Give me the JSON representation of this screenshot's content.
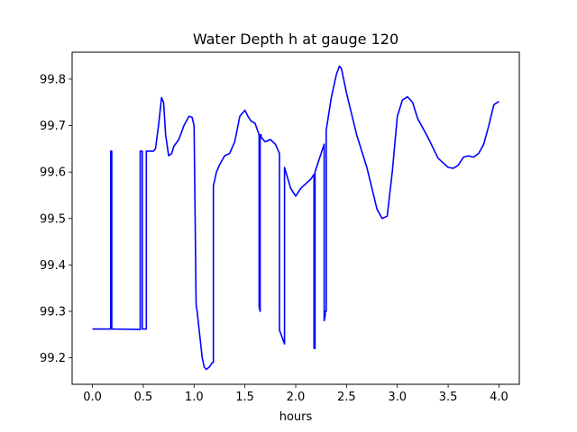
{
  "chart_data": {
    "type": "line",
    "title": "Water Depth h at gauge 120",
    "xlabel": "hours",
    "ylabel": "",
    "xlim": [
      -0.2,
      4.2
    ],
    "ylim": [
      99.143,
      99.858
    ],
    "xticks": [
      0.0,
      0.5,
      1.0,
      1.5,
      2.0,
      2.5,
      3.0,
      3.5,
      4.0
    ],
    "xtick_labels": [
      "0.0",
      "0.5",
      "1.0",
      "1.5",
      "2.0",
      "2.5",
      "3.0",
      "3.5",
      "4.0"
    ],
    "yticks": [
      99.2,
      99.3,
      99.4,
      99.5,
      99.6,
      99.7,
      99.8
    ],
    "ytick_labels": [
      "99.2",
      "99.3",
      "99.4",
      "99.5",
      "99.6",
      "99.7",
      "99.8"
    ],
    "grid": false,
    "line_color": "#0000ff",
    "series": [
      {
        "x": [
          0.0,
          0.18,
          0.18,
          0.19,
          0.19,
          0.2,
          0.2,
          0.47,
          0.47,
          0.49,
          0.49,
          0.5,
          0.5,
          0.53,
          0.53,
          0.55,
          0.6,
          0.62,
          0.65,
          0.68,
          0.7,
          0.72,
          0.75,
          0.78,
          0.8,
          0.85,
          0.9,
          0.95,
          0.98,
          1.0,
          1.02,
          1.03,
          1.05,
          1.08,
          1.1,
          1.12,
          1.15,
          1.18,
          1.19,
          1.19,
          1.22,
          1.25,
          1.3,
          1.35,
          1.4,
          1.45,
          1.5,
          1.53,
          1.56,
          1.6,
          1.64,
          1.64,
          1.65,
          1.65,
          1.66,
          1.66,
          1.7,
          1.75,
          1.8,
          1.84,
          1.84,
          1.89,
          1.89,
          1.95,
          2.0,
          2.05,
          2.1,
          2.15,
          2.18,
          2.18,
          2.19,
          2.19,
          2.25,
          2.28,
          2.28,
          2.29,
          2.29,
          2.3,
          2.3,
          2.35,
          2.4,
          2.43,
          2.45,
          2.5,
          2.6,
          2.7,
          2.75,
          2.8,
          2.85,
          2.9,
          2.95,
          3.0,
          3.05,
          3.1,
          3.15,
          3.2,
          3.3,
          3.4,
          3.5,
          3.55,
          3.6,
          3.65,
          3.7,
          3.75,
          3.8,
          3.85,
          3.9,
          3.95,
          4.0
        ],
        "values": [
          99.262,
          99.262,
          99.645,
          99.645,
          99.262,
          99.262,
          99.262,
          99.261,
          99.645,
          99.645,
          99.262,
          99.262,
          99.262,
          99.262,
          99.645,
          99.645,
          99.645,
          99.65,
          99.7,
          99.76,
          99.75,
          99.68,
          99.635,
          99.64,
          99.655,
          99.67,
          99.7,
          99.72,
          99.718,
          99.7,
          99.315,
          99.3,
          99.26,
          99.2,
          99.18,
          99.175,
          99.18,
          99.19,
          99.19,
          99.57,
          99.6,
          99.615,
          99.635,
          99.64,
          99.665,
          99.72,
          99.733,
          99.72,
          99.71,
          99.705,
          99.68,
          99.31,
          99.3,
          99.68,
          99.68,
          99.675,
          99.665,
          99.67,
          99.66,
          99.64,
          99.26,
          99.23,
          99.61,
          99.565,
          99.548,
          99.565,
          99.575,
          99.585,
          99.595,
          99.22,
          99.22,
          99.6,
          99.64,
          99.66,
          99.28,
          99.29,
          99.3,
          99.3,
          99.69,
          99.76,
          99.81,
          99.828,
          99.823,
          99.77,
          99.68,
          99.61,
          99.565,
          99.52,
          99.5,
          99.505,
          99.6,
          99.72,
          99.755,
          99.762,
          99.75,
          99.715,
          99.675,
          99.63,
          99.61,
          99.608,
          99.615,
          99.632,
          99.635,
          99.632,
          99.64,
          99.66,
          99.7,
          99.745,
          99.752
        ]
      }
    ]
  }
}
